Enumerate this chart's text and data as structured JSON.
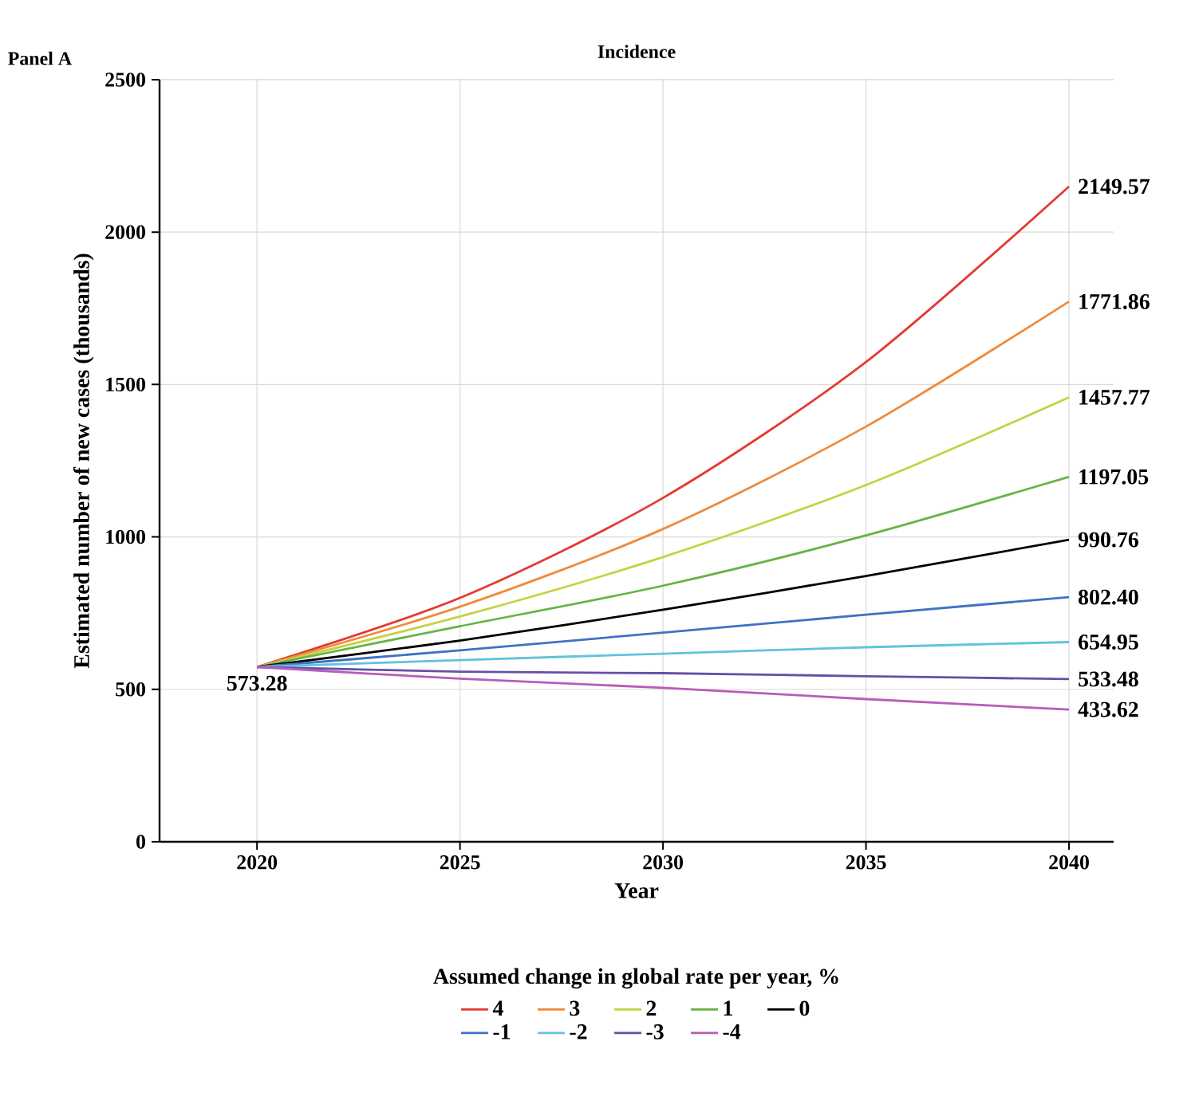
{
  "chart_data": {
    "type": "line",
    "title": "Incidence",
    "xlabel": "Year",
    "ylabel": "Estimated number of new cases (thousands)",
    "legend_title": "Assumed change in global rate per year, %",
    "annotations": [
      "Panel A"
    ],
    "x": [
      2020,
      2025,
      2030,
      2035,
      2040
    ],
    "xlim": [
      2017.6,
      2041.1
    ],
    "xticks": [
      2020,
      2025,
      2030,
      2035,
      2040
    ],
    "ylim": [
      0,
      2500
    ],
    "yticks": [
      0,
      500,
      1000,
      1500,
      2000,
      2500
    ],
    "grid": true,
    "legend": "bottom",
    "marker": "none",
    "line_style": "solid",
    "series": [
      {
        "name": "4",
        "color": "#e33b32",
        "values": [
          573.28,
          800,
          1128,
          1574,
          2149.57
        ],
        "value_labels": [
          null,
          null,
          null,
          null,
          "2149.57"
        ]
      },
      {
        "name": "3",
        "color": "#ef8a3c",
        "values": [
          573.28,
          771,
          1026,
          1362,
          1771.86
        ],
        "value_labels": [
          null,
          null,
          null,
          null,
          "1771.86"
        ]
      },
      {
        "name": "2",
        "color": "#c5d242",
        "values": [
          573.28,
          739,
          934,
          1170,
          1457.77
        ],
        "value_labels": [
          null,
          null,
          null,
          null,
          "1457.77"
        ]
      },
      {
        "name": "1",
        "color": "#66b346",
        "values": [
          573.28,
          707,
          840,
          1005,
          1197.05
        ],
        "value_labels": [
          null,
          null,
          null,
          null,
          "1197.05"
        ]
      },
      {
        "name": "0",
        "color": "#000000",
        "values": [
          573.28,
          660,
          761,
          872,
          990.76
        ],
        "value_labels": [
          null,
          null,
          null,
          null,
          "990.76"
        ]
      },
      {
        "name": "-1",
        "color": "#3f72c4",
        "values": [
          573.28,
          628,
          686,
          745,
          802.4
        ],
        "value_labels": [
          null,
          null,
          null,
          null,
          "802.40"
        ]
      },
      {
        "name": "-2",
        "color": "#62c3db",
        "values": [
          573.28,
          596,
          617,
          638,
          654.95
        ],
        "value_labels": [
          null,
          null,
          null,
          null,
          "654.95"
        ]
      },
      {
        "name": "-3",
        "color": "#6650a6",
        "values": [
          573.28,
          558,
          553,
          543,
          533.48
        ],
        "value_labels": [
          null,
          null,
          null,
          null,
          "533.48"
        ]
      },
      {
        "name": "-4",
        "color": "#b85cb8",
        "values": [
          573.28,
          535,
          505,
          468,
          433.62
        ],
        "value_labels": [
          "573.28",
          null,
          null,
          null,
          "433.62"
        ]
      }
    ]
  }
}
